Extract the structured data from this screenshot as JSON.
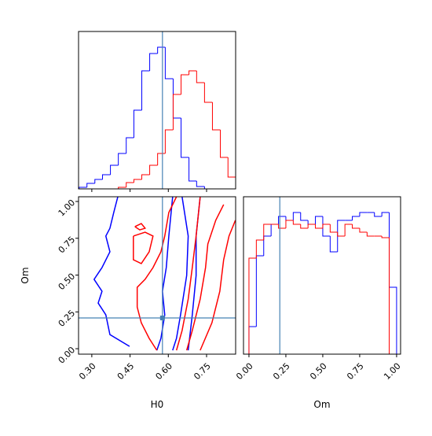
{
  "chart_data": [
    {
      "type": "histogram",
      "bins": [
        0.25,
        0.281,
        0.312,
        0.342,
        0.373,
        0.404,
        0.435,
        0.465,
        0.496,
        0.527,
        0.558,
        0.588,
        0.619,
        0.65,
        0.681,
        0.711,
        0.742,
        0.773,
        0.804,
        0.834,
        0.865
      ],
      "series": [
        {
          "color": "#0000ff",
          "values": [
            1,
            3.5,
            6,
            9,
            15,
            22.5,
            32.5,
            50,
            75,
            86,
            90,
            70,
            45,
            20,
            5,
            1.5,
            0,
            0,
            0,
            0
          ]
        },
        {
          "color": "#ff0000",
          "values": [
            0,
            0,
            0,
            0,
            0,
            1,
            4,
            6,
            9,
            15,
            22.5,
            37.5,
            60,
            72.5,
            75,
            67.5,
            55,
            37.5,
            20,
            7.5
          ]
        }
      ],
      "xlim": [
        0.248,
        0.864
      ],
      "ylim": [
        0,
        100
      ],
      "xticks": [
        0.3,
        0.45,
        0.6,
        0.75
      ],
      "truth_x": 0.577,
      "truth_color": "#4682b4"
    },
    {
      "type": "contour",
      "xlabel": "H0",
      "ylabel": "Om",
      "xlim": [
        0.248,
        0.864
      ],
      "ylim": [
        -0.037,
        1.032
      ],
      "xticks": [
        {
          "value": 0.3,
          "label": "0.30"
        },
        {
          "value": 0.45,
          "label": "0.45"
        },
        {
          "value": 0.6,
          "label": "0.60"
        },
        {
          "value": 0.75,
          "label": "0.75"
        }
      ],
      "yticks": [
        {
          "value": 0,
          "label": "0.00"
        },
        {
          "value": 0.25,
          "label": "0.25"
        },
        {
          "value": 0.5,
          "label": "0.50"
        },
        {
          "value": 0.75,
          "label": "0.75"
        },
        {
          "value": 1,
          "label": "1.00"
        }
      ],
      "truth_x": 0.577,
      "truth_y": 0.209,
      "truth_color": "#4682b4",
      "series": [
        {
          "color": "#0000ff",
          "x": [
            0.402,
            0.386,
            0.371,
            0.355,
            0.371,
            0.34,
            0.309,
            0.34,
            0.325,
            0.355,
            0.371,
            0.448
          ],
          "y": [
            1.032,
            0.925,
            0.818,
            0.765,
            0.658,
            0.551,
            0.471,
            0.39,
            0.31,
            0.23,
            0.096,
            0.016
          ]
        },
        {
          "color": "#0000ff",
          "x": [
            0.555,
            0.571,
            0.586,
            0.577,
            0.592,
            0.602,
            0.611,
            0.617
          ],
          "y": [
            -0.011,
            0.07,
            0.23,
            0.39,
            0.551,
            0.765,
            0.925,
            1.032
          ]
        },
        {
          "color": "#0000ff",
          "x": [
            0.617,
            0.632,
            0.648,
            0.672,
            0.678,
            0.654
          ],
          "y": [
            -0.011,
            0.07,
            0.23,
            0.497,
            0.765,
            1.032
          ]
        },
        {
          "color": "#0000ff",
          "x": [
            0.678,
            0.694,
            0.709,
            0.709,
            0.725
          ],
          "y": [
            -0.011,
            0.23,
            0.497,
            0.765,
            1.032
          ]
        },
        {
          "color": "#ff0000",
          "x": [
            0.632,
            0.602,
            0.586,
            0.571,
            0.54,
            0.509,
            0.478,
            0.478,
            0.494,
            0.525,
            0.555
          ],
          "y": [
            1.032,
            0.925,
            0.765,
            0.658,
            0.551,
            0.471,
            0.417,
            0.283,
            0.176,
            0.07,
            -0.011
          ]
        },
        {
          "color": "#ff0000",
          "x": [
            0.725,
            0.709,
            0.694,
            0.678,
            0.654,
            0.632
          ],
          "y": [
            1.032,
            0.765,
            0.551,
            0.337,
            0.123,
            -0.011
          ]
        },
        {
          "color": "#ff0000",
          "x": [
            0.817,
            0.786,
            0.755,
            0.746,
            0.725,
            0.694,
            0.672
          ],
          "y": [
            0.979,
            0.872,
            0.711,
            0.551,
            0.337,
            0.123,
            -0.011
          ]
        },
        {
          "color": "#ff0000",
          "x": [
            0.863,
            0.838,
            0.817,
            0.802,
            0.771,
            0.725
          ],
          "y": [
            0.872,
            0.765,
            0.604,
            0.39,
            0.176,
            -0.011
          ]
        },
        {
          "color": "#ff0000",
          "x": [
            0.469,
            0.494,
            0.509,
            0.488,
            0.469
          ],
          "y": [
            0.829,
            0.85,
            0.818,
            0.807,
            0.829
          ]
        },
        {
          "color": "#ff0000",
          "x": [
            0.463,
            0.509,
            0.54,
            0.525,
            0.494,
            0.463,
            0.463
          ],
          "y": [
            0.765,
            0.791,
            0.765,
            0.658,
            0.578,
            0.604,
            0.765
          ]
        }
      ]
    },
    {
      "type": "histogram",
      "xlabel": "Om",
      "bins": [
        0,
        0.05,
        0.1,
        0.15,
        0.2,
        0.25,
        0.3,
        0.35,
        0.4,
        0.45,
        0.5,
        0.55,
        0.6,
        0.65,
        0.7,
        0.75,
        0.8,
        0.85,
        0.9,
        0.95,
        1
      ],
      "series": [
        {
          "color": "#0000ff",
          "values": [
            17.5,
            62.5,
            75,
            82.5,
            87.5,
            85,
            90,
            85,
            82.5,
            87.5,
            75,
            65,
            85,
            85,
            87.5,
            90,
            90,
            87.5,
            90,
            42.5
          ]
        },
        {
          "color": "#ff0000",
          "values": [
            61,
            72.5,
            82.5,
            82.5,
            80,
            85,
            82.5,
            80,
            82.5,
            80,
            82.5,
            77.5,
            75,
            82.5,
            80,
            77.5,
            75,
            75,
            74,
            0
          ]
        }
      ],
      "xlim": [
        -0.037,
        1.027
      ],
      "ylim": [
        0,
        100
      ],
      "xticks": [
        {
          "value": 0,
          "label": "0.00"
        },
        {
          "value": 0.25,
          "label": "0.25"
        },
        {
          "value": 0.5,
          "label": "0.50"
        },
        {
          "value": 0.75,
          "label": "0.75"
        },
        {
          "value": 1,
          "label": "1.00"
        }
      ],
      "truth_x": 0.209,
      "truth_color": "#4682b4"
    }
  ]
}
